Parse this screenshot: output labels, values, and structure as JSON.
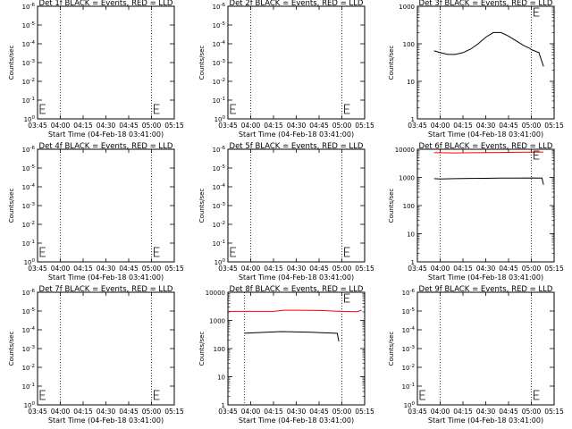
{
  "colors": {
    "events": "#000000",
    "lld": "#ff0000",
    "axes": "#000000"
  },
  "chart_data": [
    {
      "type": "line",
      "title": "Det 1f BLACK = Events, RED = LLD",
      "xlabel": "Start Time (04-Feb-18 03:41:00)",
      "ylabel": "Counts/sec",
      "x_ticks": [
        "03:45",
        "04:00",
        "04:15",
        "04:30",
        "04:45",
        "05:00",
        "05:15"
      ],
      "y_ticks": [
        "10^0",
        "10^-1",
        "10^-2",
        "10^-3",
        "10^-4",
        "10^-5",
        "10^-6"
      ],
      "y_scale": "pseudo-log (empty)",
      "vlines": [
        "04:00",
        "05:00"
      ],
      "series": []
    },
    {
      "type": "line",
      "title": "Det 2f BLACK = Events, RED = LLD",
      "xlabel": "Start Time (04-Feb-18 03:41:00)",
      "ylabel": "Counts/sec",
      "x_ticks": [
        "03:45",
        "04:00",
        "04:15",
        "04:30",
        "04:45",
        "05:00",
        "05:15"
      ],
      "y_ticks": [
        "10^0",
        "10^-1",
        "10^-2",
        "10^-3",
        "10^-4",
        "10^-5",
        "10^-6"
      ],
      "y_scale": "pseudo-log (empty)",
      "vlines": [
        "04:00",
        "05:00"
      ],
      "series": []
    },
    {
      "type": "line",
      "title": "Det 3f BLACK = Events, RED = LLD",
      "xlabel": "Start Time (04-Feb-18 03:41:00)",
      "ylabel": "Counts/sec",
      "x_ticks": [
        "03:45",
        "04:00",
        "04:15",
        "04:30",
        "04:45",
        "05:00",
        "05:15"
      ],
      "y_ticks": [
        "1",
        "10",
        "100",
        "1000"
      ],
      "y_scale": "log",
      "ylim": [
        1,
        1000
      ],
      "vlines": [
        "04:00",
        "05:00"
      ],
      "series": [
        {
          "color": "black",
          "x": [
            "03:56",
            "04:00",
            "04:05",
            "04:10",
            "04:15",
            "04:20",
            "04:25",
            "04:30",
            "04:35",
            "04:40",
            "04:45",
            "04:50",
            "04:55",
            "04:59",
            "05:00",
            "05:05",
            "05:08"
          ],
          "y": [
            65,
            58,
            52,
            52,
            58,
            72,
            100,
            150,
            200,
            200,
            160,
            120,
            90,
            75,
            70,
            58,
            25
          ]
        }
      ]
    },
    {
      "type": "line",
      "title": "Det 4f BLACK = Events, RED = LLD",
      "xlabel": "Start Time (04-Feb-18 03:41:00)",
      "ylabel": "Counts/sec",
      "x_ticks": [
        "03:45",
        "04:00",
        "04:15",
        "04:30",
        "04:45",
        "05:00",
        "05:15"
      ],
      "y_ticks": [
        "10^0",
        "10^-1",
        "10^-2",
        "10^-3",
        "10^-4",
        "10^-5",
        "10^-6"
      ],
      "y_scale": "pseudo-log (empty)",
      "vlines": [
        "04:00",
        "05:00"
      ],
      "series": []
    },
    {
      "type": "line",
      "title": "Det 5f BLACK = Events, RED = LLD",
      "xlabel": "Start Time (04-Feb-18 03:41:00)",
      "ylabel": "Counts/sec",
      "x_ticks": [
        "03:45",
        "04:00",
        "04:15",
        "04:30",
        "04:45",
        "05:00",
        "05:15"
      ],
      "y_ticks": [
        "10^0",
        "10^-1",
        "10^-2",
        "10^-3",
        "10^-4",
        "10^-5",
        "10^-6"
      ],
      "y_scale": "pseudo-log (empty)",
      "vlines": [
        "04:00",
        "05:00"
      ],
      "series": []
    },
    {
      "type": "line",
      "title": "Det 6f BLACK = Events, RED = LLD",
      "xlabel": "Start Time (04-Feb-18 03:41:00)",
      "ylabel": "Counts/sec",
      "x_ticks": [
        "03:45",
        "04:00",
        "04:15",
        "04:30",
        "04:45",
        "05:00",
        "05:15"
      ],
      "y_ticks": [
        "1",
        "10",
        "100",
        "1000",
        "10000"
      ],
      "y_scale": "log",
      "ylim": [
        1,
        10000
      ],
      "vlines": [
        "04:00",
        "05:00"
      ],
      "series": [
        {
          "color": "red",
          "x": [
            "03:56",
            "04:00",
            "04:10",
            "04:20",
            "04:30",
            "04:40",
            "04:50",
            "05:00",
            "05:08"
          ],
          "y": [
            7600,
            7500,
            7400,
            7500,
            7600,
            7700,
            7800,
            7900,
            8000
          ]
        },
        {
          "color": "black",
          "x": [
            "03:56",
            "04:00",
            "04:10",
            "04:20",
            "04:30",
            "04:40",
            "04:50",
            "05:00",
            "05:07",
            "05:08"
          ],
          "y": [
            900,
            880,
            900,
            920,
            930,
            940,
            950,
            960,
            940,
            550
          ]
        }
      ]
    },
    {
      "type": "line",
      "title": "Det 7f BLACK = Events, RED = LLD",
      "xlabel": "Start Time (04-Feb-18 03:41:00)",
      "ylabel": "Counts/sec",
      "x_ticks": [
        "03:45",
        "04:00",
        "04:15",
        "04:30",
        "04:45",
        "05:00",
        "05:15"
      ],
      "y_ticks": [
        "10^0",
        "10^-1",
        "10^-2",
        "10^-3",
        "10^-4",
        "10^-5",
        "10^-6"
      ],
      "y_scale": "pseudo-log (empty)",
      "vlines": [
        "04:00",
        "05:00"
      ],
      "series": []
    },
    {
      "type": "line",
      "title": "Det 8f BLACK = Events, RED = LLD",
      "xlabel": "Start Time (04-Feb-18 03:41:00)",
      "ylabel": "Counts/sec",
      "x_ticks": [
        "03:45",
        "04:00",
        "04:15",
        "04:30",
        "04:45",
        "05:00",
        "05:15"
      ],
      "y_ticks": [
        "1",
        "10",
        "100",
        "1000",
        "10000"
      ],
      "y_scale": "log",
      "ylim": [
        1,
        10000
      ],
      "vlines": [
        "03:56",
        "05:00"
      ],
      "series": [
        {
          "color": "red",
          "x": [
            "03:45",
            "04:00",
            "04:15",
            "04:22",
            "04:30",
            "04:45",
            "05:00",
            "05:10",
            "05:13"
          ],
          "y": [
            2100,
            2100,
            2100,
            2300,
            2300,
            2250,
            2100,
            2050,
            2300
          ]
        },
        {
          "color": "black",
          "x": [
            "03:56",
            "04:00",
            "04:10",
            "04:20",
            "04:30",
            "04:40",
            "04:50",
            "04:57",
            "04:58"
          ],
          "y": [
            350,
            360,
            380,
            400,
            390,
            380,
            360,
            350,
            180
          ]
        }
      ]
    },
    {
      "type": "line",
      "title": "Det 9f BLACK = Events, RED = LLD",
      "xlabel": "Start Time (04-Feb-18 03:41:00)",
      "ylabel": "Counts/sec",
      "x_ticks": [
        "03:45",
        "04:00",
        "04:15",
        "04:30",
        "04:45",
        "05:00",
        "05:15"
      ],
      "y_ticks": [
        "10^0",
        "10^-1",
        "10^-2",
        "10^-3",
        "10^-4",
        "10^-5",
        "10^-6"
      ],
      "y_scale": "pseudo-log (empty)",
      "vlines": [
        "04:00",
        "05:00"
      ],
      "series": []
    }
  ]
}
